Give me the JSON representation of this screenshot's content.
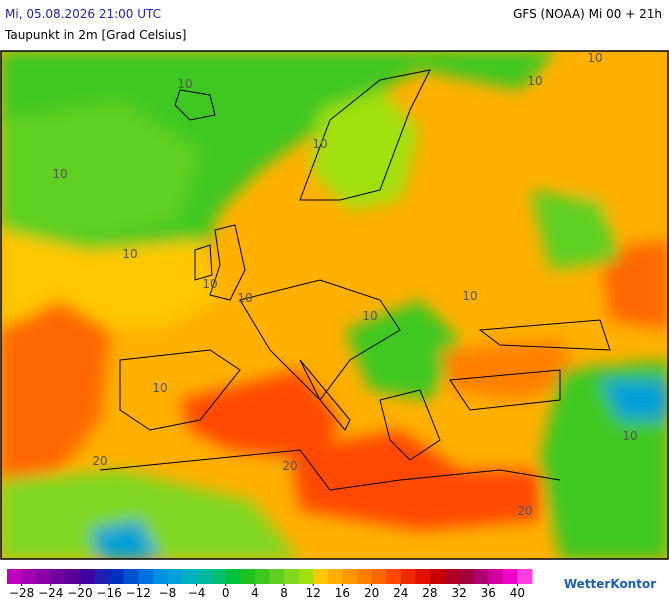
{
  "header": {
    "datetime": "Mi, 05.08.2026 21:00 UTC",
    "parameter": "Taupunkt in 2m [Grad Celsius]",
    "model": "GFS (NOAA) Mi 00 + 21h"
  },
  "map": {
    "contour_labels": [
      "10",
      "10",
      "10",
      "10",
      "10",
      "10",
      "10",
      "10",
      "10",
      "10",
      "20",
      "20",
      "20",
      "10",
      "10"
    ]
  },
  "legend": {
    "range": [
      -30,
      42
    ],
    "colors": [
      "#c000c0",
      "#a000b0",
      "#8800a8",
      "#7000a0",
      "#5a0098",
      "#4000a0",
      "#2020b0",
      "#0030c0",
      "#0050d0",
      "#0070e0",
      "#0090e0",
      "#00a0d8",
      "#00b0c0",
      "#00b8a0",
      "#00c070",
      "#00c040",
      "#20c020",
      "#40c820",
      "#60d020",
      "#80d820",
      "#a0e010",
      "#ffc800",
      "#ffb000",
      "#ff9800",
      "#ff8000",
      "#ff6800",
      "#ff4800",
      "#f02800",
      "#e01000",
      "#c80000",
      "#b00020",
      "#a00040",
      "#b00070",
      "#d000a0",
      "#f000c8",
      "#ff40e0"
    ],
    "ticks": [
      {
        "value": -28,
        "label": "−28"
      },
      {
        "value": -24,
        "label": "−24"
      },
      {
        "value": -20,
        "label": "−20"
      },
      {
        "value": -16,
        "label": "−16"
      },
      {
        "value": -12,
        "label": "−12"
      },
      {
        "value": -8,
        "label": "−8"
      },
      {
        "value": -4,
        "label": "−4"
      },
      0,
      4,
      8,
      12,
      16,
      20,
      24,
      28,
      32,
      36,
      40
    ]
  },
  "logo": "WetterKontor"
}
